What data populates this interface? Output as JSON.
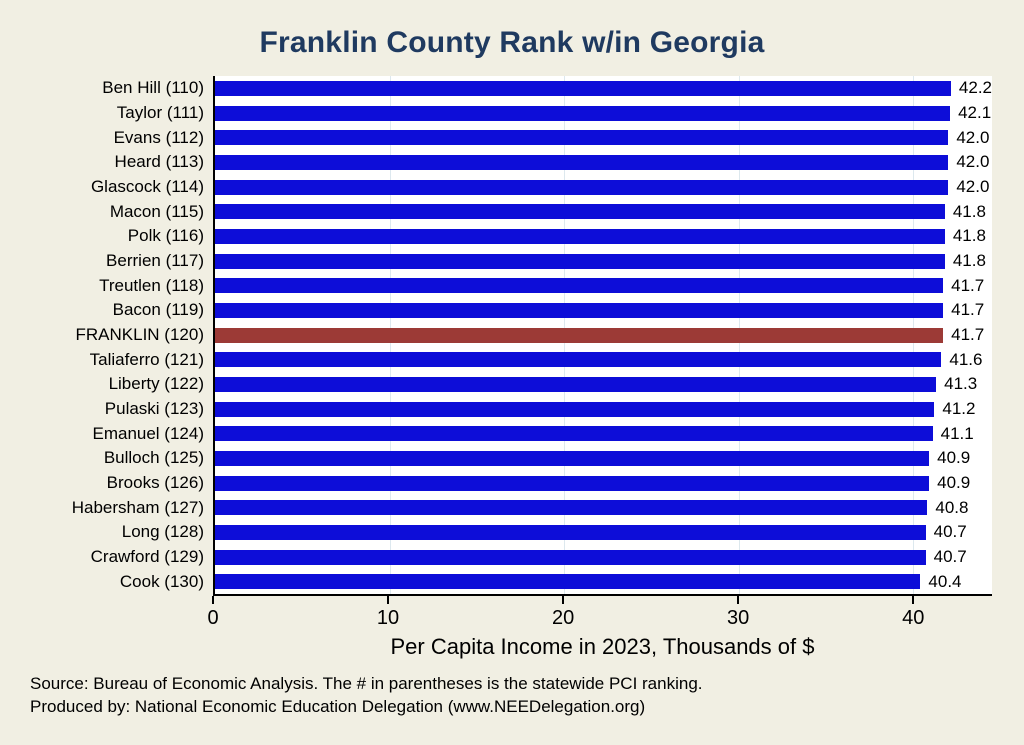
{
  "title": "Franklin County Rank w/in Georgia",
  "footer": {
    "line1": "Source: Bureau of Economic Analysis. The # in parentheses is the statewide PCI ranking.",
    "line2": "Produced by: National Economic Education Delegation (www.NEEDelegation.org)"
  },
  "chart_data": {
    "type": "bar",
    "orientation": "horizontal",
    "title": "Franklin County Rank w/in Georgia",
    "xlabel": "Per Capita Income in 2023, Thousands of $",
    "xlim": [
      0,
      44.5
    ],
    "xticks": [
      0,
      10,
      20,
      30,
      40
    ],
    "grid": true,
    "legend": "none",
    "categories": [
      "Ben Hill (110)",
      "Taylor (111)",
      "Evans (112)",
      "Heard (113)",
      "Glascock (114)",
      "Macon (115)",
      "Polk (116)",
      "Berrien (117)",
      "Treutlen (118)",
      "Bacon (119)",
      "FRANKLIN (120)",
      "Taliaferro (121)",
      "Liberty (122)",
      "Pulaski (123)",
      "Emanuel (124)",
      "Bulloch (125)",
      "Brooks (126)",
      "Habersham (127)",
      "Long (128)",
      "Crawford (129)",
      "Cook (130)"
    ],
    "values": [
      42.2,
      42.1,
      42.0,
      42.0,
      42.0,
      41.8,
      41.8,
      41.8,
      41.7,
      41.7,
      41.7,
      41.6,
      41.3,
      41.2,
      41.1,
      40.9,
      40.9,
      40.8,
      40.7,
      40.7,
      40.4
    ],
    "highlight_index": 10,
    "highlight_category": "FRANKLIN (120)",
    "colors": {
      "bar": "#0d0dd8",
      "highlight_bar": "#9c3a36",
      "title": "#1f3a60",
      "plot_background": "#ffffff",
      "page_background": "#f1efe3",
      "gridline": "#dde8ee"
    }
  }
}
